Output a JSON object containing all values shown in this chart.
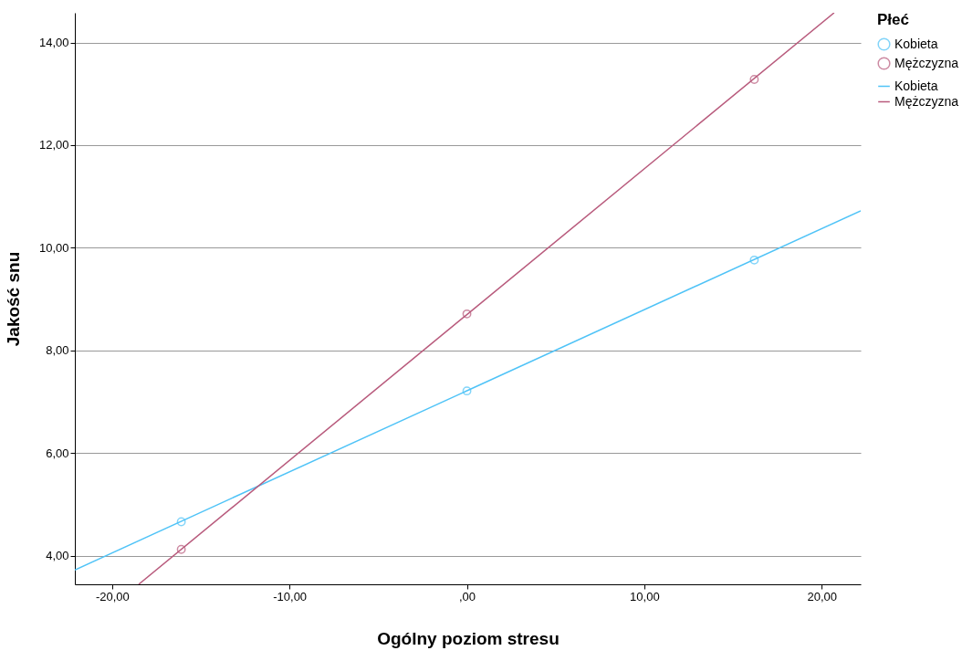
{
  "chart_data": {
    "type": "scatter",
    "xlabel": "Ogólny poziom stresu",
    "ylabel": "Jakość snu",
    "legend_title": "Płeć",
    "legend": "top right",
    "grid": "y",
    "marker": "circle",
    "xlim": [
      -22.1,
      22.2
    ],
    "ylim": [
      3.44,
      14.58
    ],
    "xticks": [
      {
        "value": -20,
        "label": "-20,00"
      },
      {
        "value": -10,
        "label": "-10,00"
      },
      {
        "value": 0,
        "label": ",00"
      },
      {
        "value": 10,
        "label": "10,00"
      },
      {
        "value": 20,
        "label": "20,00"
      }
    ],
    "yticks": [
      {
        "value": 4,
        "label": "4,00"
      },
      {
        "value": 6,
        "label": "6,00"
      },
      {
        "value": 8,
        "label": "8,00"
      },
      {
        "value": 10,
        "label": "10,00"
      },
      {
        "value": 12,
        "label": "12,00"
      },
      {
        "value": 14,
        "label": "14,00"
      }
    ],
    "series": [
      {
        "name": "Kobieta",
        "color": "#4fc3f7",
        "x": [
          -16.1,
          0,
          16.2
        ],
        "values": [
          4.66,
          7.21,
          9.76
        ]
      },
      {
        "name": "Mężczyzna",
        "color": "#b85a7c",
        "x": [
          -16.1,
          0,
          16.2
        ],
        "values": [
          4.12,
          8.71,
          13.28
        ]
      },
      {
        "name": "Kobieta",
        "type": "line",
        "marker": "none",
        "color": "#4fc3f7",
        "x": [
          -22.1,
          22.2
        ],
        "values": [
          3.72,
          10.72
        ]
      },
      {
        "name": "Mężczyzna",
        "type": "line",
        "marker": "none",
        "color": "#b85a7c",
        "x": [
          -18.5,
          20.7
        ],
        "values": [
          3.44,
          14.58
        ]
      }
    ]
  }
}
